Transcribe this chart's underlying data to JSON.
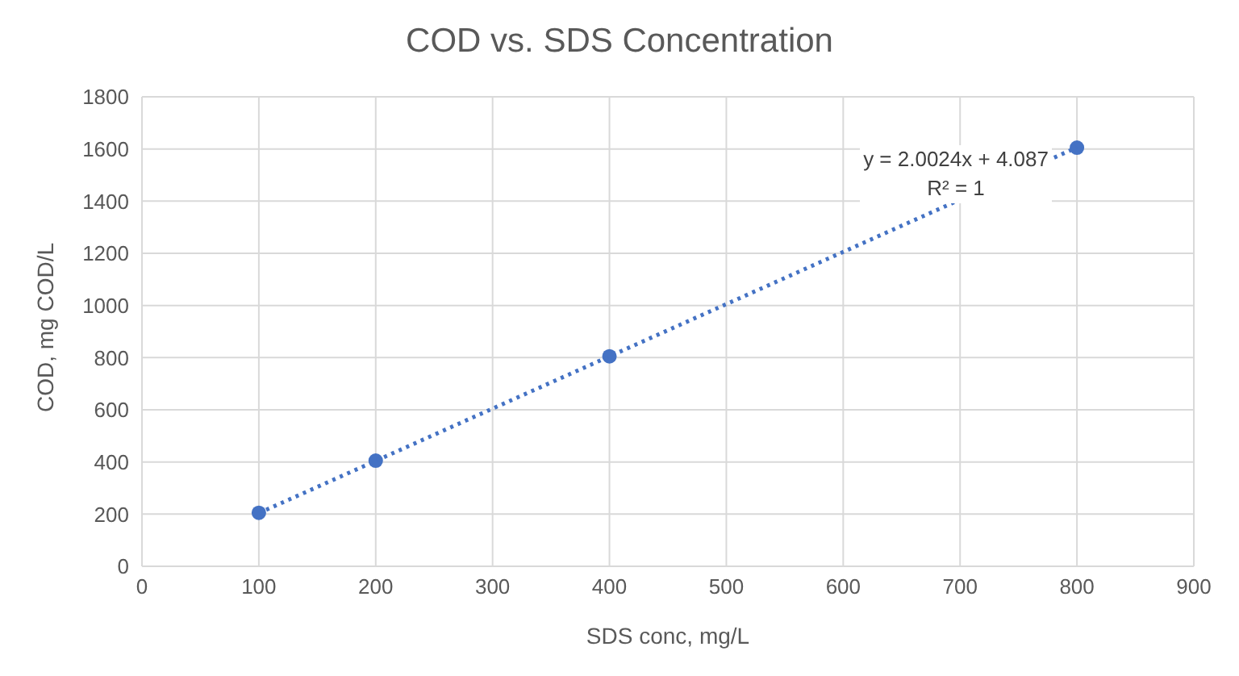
{
  "chart_data": {
    "type": "scatter",
    "title": "COD vs. SDS Concentration",
    "xlabel": "SDS conc, mg/L",
    "ylabel": "COD, mg COD/L",
    "x": [
      100,
      200,
      400,
      800
    ],
    "series": [
      {
        "color": "#4472c4",
        "values": [
          205,
          405,
          805,
          1605
        ]
      },
      {
        "type": "line",
        "color": "#4472c4",
        "x": [
          100,
          800
        ],
        "values": [
          204,
          1606
        ],
        "line_style": "dotted",
        "marker": "none"
      }
    ],
    "xlim": [
      0,
      900
    ],
    "xticks": [
      0,
      100,
      200,
      300,
      400,
      500,
      600,
      700,
      800,
      900
    ],
    "ylim": [
      0,
      1800
    ],
    "yticks": [
      0,
      200,
      400,
      600,
      800,
      1000,
      1200,
      1400,
      1600,
      1800
    ],
    "annotations": [
      "y = 2.0024x + 4.087",
      "R² = 1"
    ],
    "grid": true,
    "legend": false,
    "marker": "circle"
  }
}
